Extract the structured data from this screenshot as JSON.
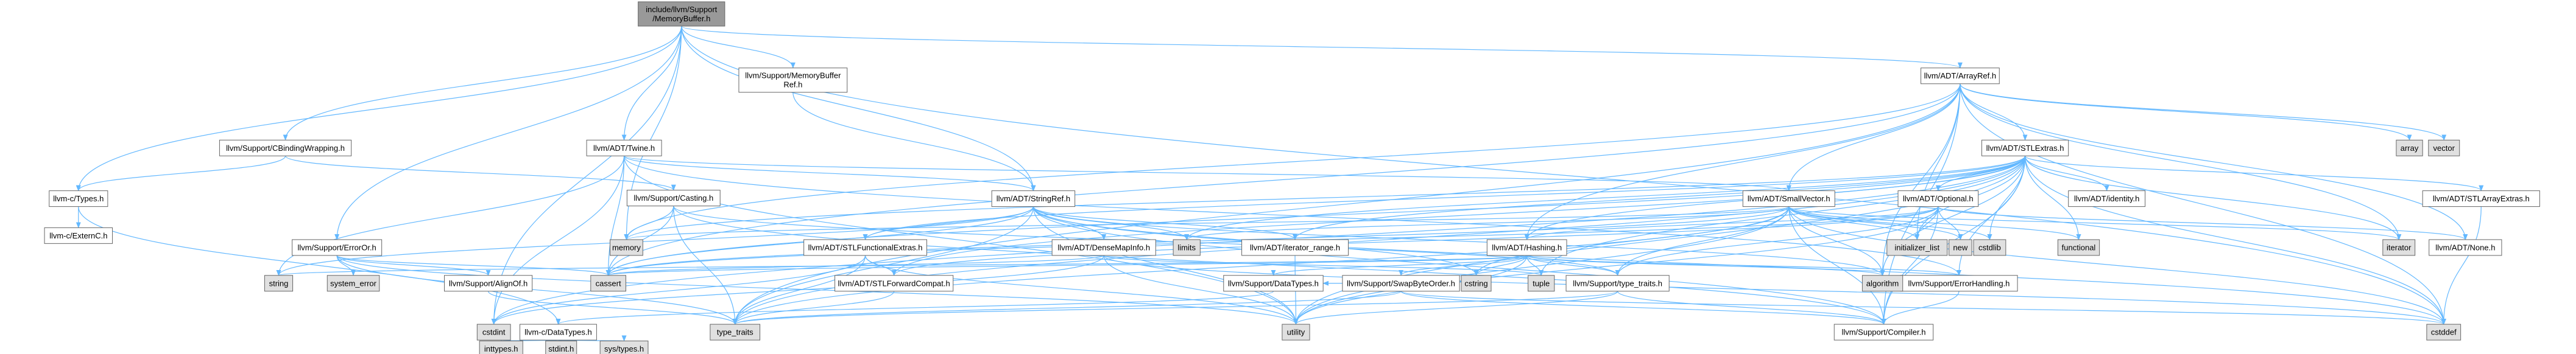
{
  "nodes": [
    {
      "id": "root",
      "lines": [
        "include/llvm/Support",
        "/MemoryBuffer.h"
      ],
      "style": "focus"
    },
    {
      "id": "ctypes",
      "lines": [
        "llvm-c/Types.h"
      ],
      "style": "normal"
    },
    {
      "id": "externc",
      "lines": [
        "llvm-c/ExternC.h"
      ],
      "style": "normal"
    },
    {
      "id": "cbinding",
      "lines": [
        "llvm/Support/CBindingWrapping.h"
      ],
      "style": "normal"
    },
    {
      "id": "erroror",
      "lines": [
        "llvm/Support/ErrorOr.h"
      ],
      "style": "normal"
    },
    {
      "id": "alignof",
      "lines": [
        "llvm/Support/AlignOf.h"
      ],
      "style": "normal"
    },
    {
      "id": "twine",
      "lines": [
        "llvm/ADT/Twine.h"
      ],
      "style": "normal"
    },
    {
      "id": "casting",
      "lines": [
        "llvm/Support/Casting.h"
      ],
      "style": "normal"
    },
    {
      "id": "membufref",
      "lines": [
        "llvm/Support/MemoryBuffer",
        "Ref.h"
      ],
      "style": "normal"
    },
    {
      "id": "stringref",
      "lines": [
        "llvm/ADT/StringRef.h"
      ],
      "style": "normal"
    },
    {
      "id": "stlfunc",
      "lines": [
        "llvm/ADT/STLFunctionalExtras.h"
      ],
      "style": "normal"
    },
    {
      "id": "densemapinfo",
      "lines": [
        "llvm/ADT/DenseMapInfo.h"
      ],
      "style": "normal"
    },
    {
      "id": "stlfwd",
      "lines": [
        "llvm/ADT/STLForwardCompat.h"
      ],
      "style": "normal"
    },
    {
      "id": "iterrange",
      "lines": [
        "llvm/ADT/iterator_range.h"
      ],
      "style": "normal"
    },
    {
      "id": "hashing",
      "lines": [
        "llvm/ADT/Hashing.h"
      ],
      "style": "normal"
    },
    {
      "id": "datatypes",
      "lines": [
        "llvm/Support/DataTypes.h"
      ],
      "style": "normal"
    },
    {
      "id": "swapbyte",
      "lines": [
        "llvm/Support/SwapByteOrder.h"
      ],
      "style": "red"
    },
    {
      "id": "typetraits",
      "lines": [
        "llvm/Support/type_traits.h"
      ],
      "style": "normal"
    },
    {
      "id": "errorhandling",
      "lines": [
        "llvm/Support/ErrorHandling.h"
      ],
      "style": "normal"
    },
    {
      "id": "compiler",
      "lines": [
        "llvm/Support/Compiler.h"
      ],
      "style": "red"
    },
    {
      "id": "cdatatypes",
      "lines": [
        "llvm-c/DataTypes.h"
      ],
      "style": "normal"
    },
    {
      "id": "smallvector",
      "lines": [
        "llvm/ADT/SmallVector.h"
      ],
      "style": "normal"
    },
    {
      "id": "optional",
      "lines": [
        "llvm/ADT/Optional.h"
      ],
      "style": "normal"
    },
    {
      "id": "stlextras",
      "lines": [
        "llvm/ADT/STLExtras.h"
      ],
      "style": "red"
    },
    {
      "id": "identity",
      "lines": [
        "llvm/ADT/identity.h"
      ],
      "style": "normal"
    },
    {
      "id": "stlarray",
      "lines": [
        "llvm/ADT/STLArrayExtras.h"
      ],
      "style": "normal"
    },
    {
      "id": "none",
      "lines": [
        "llvm/ADT/None.h"
      ],
      "style": "normal"
    },
    {
      "id": "arrayref",
      "lines": [
        "llvm/ADT/ArrayRef.h"
      ],
      "style": "normal"
    },
    {
      "id": "memory",
      "lines": [
        "memory"
      ],
      "style": "sys"
    },
    {
      "id": "cassert",
      "lines": [
        "cassert"
      ],
      "style": "sys"
    },
    {
      "id": "string",
      "lines": [
        "string"
      ],
      "style": "sys"
    },
    {
      "id": "system_error",
      "lines": [
        "system_error"
      ],
      "style": "sys"
    },
    {
      "id": "cstdint",
      "lines": [
        "cstdint"
      ],
      "style": "sys"
    },
    {
      "id": "type_traits",
      "lines": [
        "type_traits"
      ],
      "style": "sys"
    },
    {
      "id": "limits",
      "lines": [
        "limits"
      ],
      "style": "sys"
    },
    {
      "id": "cstring",
      "lines": [
        "cstring"
      ],
      "style": "sys"
    },
    {
      "id": "tuple",
      "lines": [
        "tuple"
      ],
      "style": "sys"
    },
    {
      "id": "utility",
      "lines": [
        "utility"
      ],
      "style": "sys"
    },
    {
      "id": "algorithm",
      "lines": [
        "algorithm"
      ],
      "style": "sys"
    },
    {
      "id": "cstddef",
      "lines": [
        "cstddef"
      ],
      "style": "sys"
    },
    {
      "id": "inttypes",
      "lines": [
        "inttypes.h"
      ],
      "style": "sys"
    },
    {
      "id": "stdint",
      "lines": [
        "stdint.h"
      ],
      "style": "sys"
    },
    {
      "id": "systypes",
      "lines": [
        "sys/types.h"
      ],
      "style": "sys"
    },
    {
      "id": "initlist",
      "lines": [
        "initializer_list"
      ],
      "style": "sys"
    },
    {
      "id": "new",
      "lines": [
        "new"
      ],
      "style": "sys"
    },
    {
      "id": "cstdlib",
      "lines": [
        "cstdlib"
      ],
      "style": "sys"
    },
    {
      "id": "functional",
      "lines": [
        "functional"
      ],
      "style": "sys"
    },
    {
      "id": "iterator",
      "lines": [
        "iterator"
      ],
      "style": "sys"
    },
    {
      "id": "array",
      "lines": [
        "array"
      ],
      "style": "sys"
    },
    {
      "id": "vector",
      "lines": [
        "vector"
      ],
      "style": "sys"
    }
  ],
  "edges": [
    [
      "root",
      "ctypes"
    ],
    [
      "root",
      "cbinding"
    ],
    [
      "root",
      "erroror"
    ],
    [
      "root",
      "twine"
    ],
    [
      "root",
      "membufref"
    ],
    [
      "root",
      "stringref"
    ],
    [
      "root",
      "arrayref"
    ],
    [
      "root",
      "memory"
    ],
    [
      "root",
      "cstdint"
    ],
    [
      "root",
      "cstddef"
    ],
    [
      "ctypes",
      "externc"
    ],
    [
      "ctypes",
      "cdatatypes"
    ],
    [
      "cbinding",
      "ctypes"
    ],
    [
      "cbinding",
      "casting"
    ],
    [
      "erroror",
      "alignof"
    ],
    [
      "erroror",
      "cassert"
    ],
    [
      "erroror",
      "system_error"
    ],
    [
      "erroror",
      "type_traits"
    ],
    [
      "erroror",
      "utility"
    ],
    [
      "alignof",
      "type_traits"
    ],
    [
      "twine",
      "stringref"
    ],
    [
      "twine",
      "smallvector"
    ],
    [
      "twine",
      "errorhandling"
    ],
    [
      "twine",
      "cassert"
    ],
    [
      "twine",
      "cstdint"
    ],
    [
      "twine",
      "string"
    ],
    [
      "twine",
      "utility"
    ],
    [
      "casting",
      "compiler"
    ],
    [
      "casting",
      "typetraits"
    ],
    [
      "casting",
      "cassert"
    ],
    [
      "casting",
      "memory"
    ],
    [
      "casting",
      "type_traits"
    ],
    [
      "membufref",
      "stringref"
    ],
    [
      "stringref",
      "densemapinfo"
    ],
    [
      "stringref",
      "stlfunc"
    ],
    [
      "stringref",
      "iterrange"
    ],
    [
      "stringref",
      "compiler"
    ],
    [
      "stringref",
      "algorithm"
    ],
    [
      "stringref",
      "cassert"
    ],
    [
      "stringref",
      "cstddef"
    ],
    [
      "stringref",
      "cstring"
    ],
    [
      "stringref",
      "limits"
    ],
    [
      "stringref",
      "string"
    ],
    [
      "stringref",
      "type_traits"
    ],
    [
      "stringref",
      "utility"
    ],
    [
      "stlfunc",
      "stlfwd"
    ],
    [
      "stlfunc",
      "cstdint"
    ],
    [
      "stlfunc",
      "type_traits"
    ],
    [
      "stlfunc",
      "utility"
    ],
    [
      "densemapinfo",
      "cassert"
    ],
    [
      "densemapinfo",
      "cstddef"
    ],
    [
      "densemapinfo",
      "cstdint"
    ],
    [
      "densemapinfo",
      "tuple"
    ],
    [
      "densemapinfo",
      "utility"
    ],
    [
      "stlfwd",
      "type_traits"
    ],
    [
      "iterrange",
      "utility"
    ],
    [
      "hashing",
      "errorhandling"
    ],
    [
      "hashing",
      "swapbyte"
    ],
    [
      "hashing",
      "typetraits"
    ],
    [
      "hashing",
      "algorithm"
    ],
    [
      "hashing",
      "cassert"
    ],
    [
      "hashing",
      "cstring"
    ],
    [
      "hashing",
      "string"
    ],
    [
      "hashing",
      "tuple"
    ],
    [
      "hashing",
      "utility"
    ],
    [
      "hashing",
      "datatypes"
    ],
    [
      "datatypes",
      "cdatatypes"
    ],
    [
      "swapbyte",
      "compiler"
    ],
    [
      "swapbyte",
      "datatypes"
    ],
    [
      "swapbyte",
      "cstddef"
    ],
    [
      "swapbyte",
      "type_traits"
    ],
    [
      "typetraits",
      "compiler"
    ],
    [
      "typetraits",
      "type_traits"
    ],
    [
      "typetraits",
      "utility"
    ],
    [
      "errorhandling",
      "compiler"
    ],
    [
      "cdatatypes",
      "inttypes"
    ],
    [
      "cdatatypes",
      "stdint"
    ],
    [
      "cdatatypes",
      "systypes"
    ],
    [
      "smallvector",
      "compiler"
    ],
    [
      "smallvector",
      "typetraits"
    ],
    [
      "smallvector",
      "algorithm"
    ],
    [
      "smallvector",
      "cassert"
    ],
    [
      "smallvector",
      "cstddef"
    ],
    [
      "smallvector",
      "cstdlib"
    ],
    [
      "smallvector",
      "cstring"
    ],
    [
      "smallvector",
      "functional"
    ],
    [
      "smallvector",
      "initlist"
    ],
    [
      "smallvector",
      "iterator"
    ],
    [
      "smallvector",
      "limits"
    ],
    [
      "smallvector",
      "memory"
    ],
    [
      "smallvector",
      "new"
    ],
    [
      "smallvector",
      "type_traits"
    ],
    [
      "smallvector",
      "utility"
    ],
    [
      "optional",
      "hashing"
    ],
    [
      "optional",
      "none"
    ],
    [
      "optional",
      "stlfwd"
    ],
    [
      "optional",
      "compiler"
    ],
    [
      "optional",
      "typetraits"
    ],
    [
      "optional",
      "cassert"
    ],
    [
      "optional",
      "initlist"
    ],
    [
      "optional",
      "new"
    ],
    [
      "optional",
      "utility"
    ],
    [
      "stlextras",
      "hashing"
    ],
    [
      "stlextras",
      "optional"
    ],
    [
      "stlextras",
      "stlarray"
    ],
    [
      "stlextras",
      "stlfunc"
    ],
    [
      "stlextras",
      "stlfwd"
    ],
    [
      "stlextras",
      "identity"
    ],
    [
      "stlextras",
      "iterrange"
    ],
    [
      "stlextras",
      "iterator"
    ],
    [
      "stlextras",
      "compiler"
    ],
    [
      "stlextras",
      "errorhandling"
    ],
    [
      "stlextras",
      "algorithm"
    ],
    [
      "stlextras",
      "cassert"
    ],
    [
      "stlextras",
      "cstddef"
    ],
    [
      "stlextras",
      "cstdint"
    ],
    [
      "stlextras",
      "cstdlib"
    ],
    [
      "stlextras",
      "functional"
    ],
    [
      "stlextras",
      "initlist"
    ],
    [
      "stlextras",
      "limits"
    ],
    [
      "stlextras",
      "memory"
    ],
    [
      "stlextras",
      "tuple"
    ],
    [
      "stlextras",
      "type_traits"
    ],
    [
      "stlextras",
      "utility"
    ],
    [
      "stlarray",
      "cstddef"
    ],
    [
      "arrayref",
      "hashing"
    ],
    [
      "arrayref",
      "none"
    ],
    [
      "arrayref",
      "smallvector"
    ],
    [
      "arrayref",
      "stlextras"
    ],
    [
      "arrayref",
      "compiler"
    ],
    [
      "arrayref",
      "algorithm"
    ],
    [
      "arrayref",
      "array"
    ],
    [
      "arrayref",
      "cassert"
    ],
    [
      "arrayref",
      "cstddef"
    ],
    [
      "arrayref",
      "initlist"
    ],
    [
      "arrayref",
      "iterator"
    ],
    [
      "arrayref",
      "memory"
    ],
    [
      "arrayref",
      "type_traits"
    ],
    [
      "arrayref",
      "vector"
    ]
  ]
}
